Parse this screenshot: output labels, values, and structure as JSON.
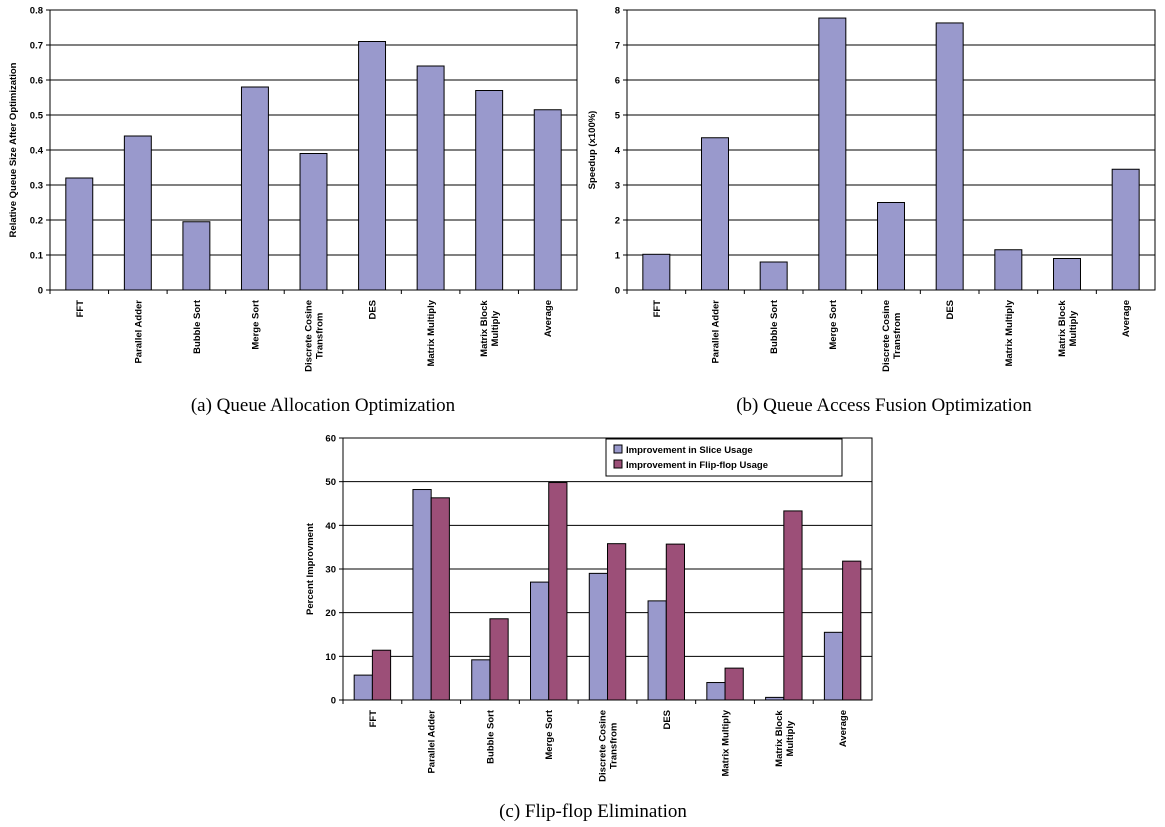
{
  "chart_data": [
    {
      "type": "bar",
      "categories": [
        "FFT",
        "Parallel Adder",
        "Bubble Sort",
        "Merge Sort",
        "Discrete Cosine Transfrom",
        "DES",
        "Matrix Multiply",
        "Matrix Block Multiply",
        "Average"
      ],
      "category_lines": [
        [
          "FFT"
        ],
        [
          "Parallel Adder"
        ],
        [
          "Bubble Sort"
        ],
        [
          "Merge Sort"
        ],
        [
          "Discrete Cosine",
          "Transfrom"
        ],
        [
          "DES"
        ],
        [
          "Matrix Multiply"
        ],
        [
          "Matrix Block",
          "Multiply"
        ],
        [
          "Average"
        ]
      ],
      "series": [
        {
          "values": [
            0.32,
            0.44,
            0.195,
            0.58,
            0.39,
            0.71,
            0.64,
            0.57,
            0.515
          ],
          "color": "#9999cc"
        }
      ],
      "ylabel": "Relative Queue Size After Optimization",
      "ylim": [
        0,
        0.8
      ],
      "yticks": [
        "0",
        "0.1",
        "0.2",
        "0.3",
        "0.4",
        "0.5",
        "0.6",
        "0.7",
        "0.8"
      ],
      "caption": "(a) Queue Allocation Optimization",
      "grid": true
    },
    {
      "type": "bar",
      "categories": [
        "FFT",
        "Parallel Adder",
        "Bubble Sort",
        "Merge Sort",
        "Discrete Cosine Transfrom",
        "DES",
        "Matrix Multiply",
        "Matrix Block Multiply",
        "Average"
      ],
      "category_lines": [
        [
          "FFT"
        ],
        [
          "Parallel Adder"
        ],
        [
          "Bubble Sort"
        ],
        [
          "Merge Sort"
        ],
        [
          "Discrete Cosine",
          "Transfrom"
        ],
        [
          "DES"
        ],
        [
          "Matrix Multiply"
        ],
        [
          "Matrix Block",
          "Multiply"
        ],
        [
          "Average"
        ]
      ],
      "series": [
        {
          "values": [
            1.02,
            4.35,
            0.8,
            7.77,
            2.5,
            7.63,
            1.15,
            0.9,
            3.45
          ],
          "color": "#9999cc"
        }
      ],
      "ylabel": "Speedup (x100%)",
      "ylim": [
        0,
        8
      ],
      "yticks": [
        "0",
        "1",
        "2",
        "3",
        "4",
        "5",
        "6",
        "7",
        "8"
      ],
      "caption": "(b) Queue Access Fusion Optimization",
      "grid": true
    },
    {
      "type": "bar",
      "categories": [
        "FFT",
        "Parallel Adder",
        "Bubble Sort",
        "Merge Sort",
        "Discrete Cosine Transfrom",
        "DES",
        "Matrix Multiply",
        "Matrix Block Multiply",
        "Average"
      ],
      "category_lines": [
        [
          "FFT"
        ],
        [
          "Parallel Adder"
        ],
        [
          "Bubble Sort"
        ],
        [
          "Merge Sort"
        ],
        [
          "Discrete Cosine",
          "Transfrom"
        ],
        [
          "DES"
        ],
        [
          "Matrix Multiply"
        ],
        [
          "Matrix Block",
          "Multiply"
        ],
        [
          "Average"
        ]
      ],
      "series": [
        {
          "name": "Improvement in Slice Usage",
          "values": [
            5.7,
            48.2,
            9.2,
            27.0,
            29.0,
            22.7,
            4.0,
            0.6,
            15.5
          ],
          "color": "#9999cc"
        },
        {
          "name": "Improvement in Flip-flop Usage",
          "values": [
            11.4,
            46.3,
            18.6,
            49.8,
            35.8,
            35.7,
            7.3,
            43.3,
            31.8
          ],
          "color": "#9c4f78"
        }
      ],
      "ylabel": "Percent Improvment",
      "ylim": [
        0,
        60
      ],
      "yticks": [
        "0",
        "10",
        "20",
        "30",
        "40",
        "50",
        "60"
      ],
      "caption": "(c) Flip-flop Elimination",
      "legend": "top-right",
      "grid": true
    }
  ]
}
